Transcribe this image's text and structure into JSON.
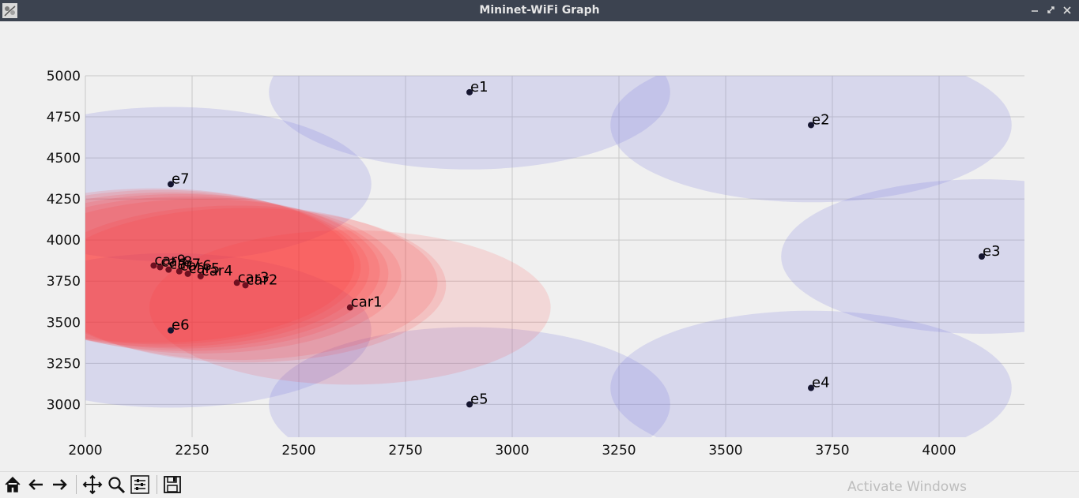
{
  "window": {
    "title": "Mininet-WiFi Graph"
  },
  "watermark": "Activate Windows",
  "toolbar": {
    "buttons": [
      {
        "name": "home-icon"
      },
      {
        "name": "back-icon"
      },
      {
        "name": "forward-icon"
      },
      {
        "name": "pan-icon"
      },
      {
        "name": "zoom-icon"
      },
      {
        "name": "configure-subplots-icon"
      },
      {
        "name": "save-icon"
      }
    ]
  },
  "chart_data": {
    "type": "scatter",
    "title": "",
    "xlabel": "",
    "ylabel": "",
    "xlim": [
      2000,
      4200
    ],
    "ylim": [
      2800,
      5000
    ],
    "grid": true,
    "x_ticks": [
      2000,
      2250,
      2500,
      2750,
      3000,
      3250,
      3500,
      3750,
      4000
    ],
    "y_ticks": [
      3000,
      3250,
      3500,
      3750,
      4000,
      4250,
      4500,
      4750,
      5000
    ],
    "series": [
      {
        "points": [
          {
            "label": "e1",
            "x": 2900,
            "y": 4900,
            "range": 470
          },
          {
            "label": "e2",
            "x": 3700,
            "y": 4700,
            "range": 470
          },
          {
            "label": "e3",
            "x": 4100,
            "y": 3900,
            "range": 470
          },
          {
            "label": "e4",
            "x": 3700,
            "y": 3100,
            "range": 470
          },
          {
            "label": "e5",
            "x": 2900,
            "y": 3000,
            "range": 470
          },
          {
            "label": "e6",
            "x": 2200,
            "y": 3450,
            "range": 470
          },
          {
            "label": "e7",
            "x": 2200,
            "y": 4340,
            "range": 470
          }
        ]
      },
      {
        "points": [
          {
            "label": "car1",
            "x": 2620,
            "y": 3590,
            "range": 470
          },
          {
            "label": "car2",
            "x": 2375,
            "y": 3725,
            "range": 470
          },
          {
            "label": "car3",
            "x": 2355,
            "y": 3740,
            "range": 470
          },
          {
            "label": "car4",
            "x": 2270,
            "y": 3780,
            "range": 470
          },
          {
            "label": "car5",
            "x": 2240,
            "y": 3795,
            "range": 470
          },
          {
            "label": "car6",
            "x": 2220,
            "y": 3810,
            "range": 470
          },
          {
            "label": "car7",
            "x": 2195,
            "y": 3820,
            "range": 470
          },
          {
            "label": "car8",
            "x": 2175,
            "y": 3835,
            "range": 470
          },
          {
            "label": "car9",
            "x": 2160,
            "y": 3845,
            "range": 470
          }
        ]
      }
    ]
  }
}
